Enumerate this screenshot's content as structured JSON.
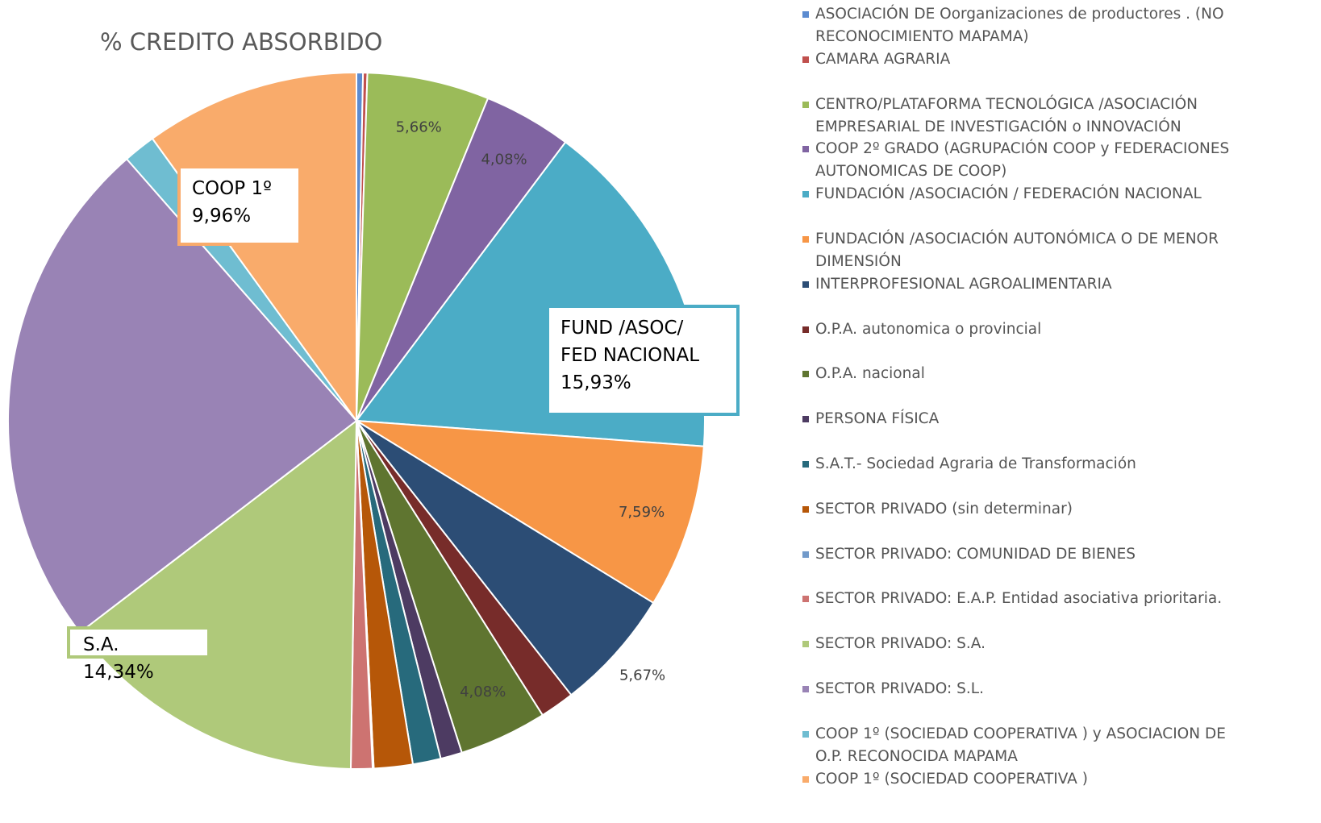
{
  "chart_data": {
    "type": "pie",
    "title": "% CREDITO ABSORBIDO",
    "categories": [
      "ASOCIACIÓN DE Oorganizaciones de productores . (NO RECONOCIMIENTO MAPAMA)",
      "CAMARA AGRARIA",
      "CENTRO/PLATAFORMA TECNOLÓGICA /ASOCIACIÓN EMPRESARIAL DE INVESTIGACIÓN  o INNOVACIÓN",
      "COOP 2º GRADO (AGRUPACIÓN COOP y FEDERACIONES AUTONOMICAS DE COOP)",
      "FUNDACIÓN /ASOCIACIÓN / FEDERACIÓN  NACIONAL",
      "FUNDACIÓN /ASOCIACIÓN AUTONÓMICA O DE MENOR DIMENSIÓN",
      "INTERPROFESIONAL AGROALIMENTARIA",
      "O.P.A. autonomica o provincial",
      "O.P.A. nacional",
      "PERSONA FÍSICA",
      "S.A.T.- Sociedad Agraria de Transformación",
      "SECTOR PRIVADO (sin determinar)",
      "SECTOR PRIVADO: COMUNIDAD DE BIENES",
      "SECTOR PRIVADO: E.A.P. Entidad asociativa prioritaria.",
      "SECTOR PRIVADO: S.A.",
      "SECTOR PRIVADO: S.L.",
      "COOP 1º (SOCIEDAD COOPERATIVA ) y ASOCIACION DE O.P. RECONOCIDA MAPAMA",
      "COOP 1º (SOCIEDAD COOPERATIVA )"
    ],
    "values": [
      0.3,
      0.2,
      5.66,
      4.08,
      15.93,
      7.59,
      5.67,
      1.6,
      4.08,
      1.0,
      1.3,
      1.8,
      0.05,
      1.0,
      14.34,
      23.94,
      1.5,
      9.96
    ],
    "value_labels": [
      null,
      null,
      "5,66%",
      "4,08%",
      "15,93%",
      "7,59%",
      "5,67%",
      null,
      "4,08%",
      null,
      null,
      null,
      null,
      null,
      "14,34%",
      null,
      null,
      "9,96%"
    ],
    "label_titles": [
      null,
      null,
      null,
      null,
      [
        "FUND /ASOC/",
        "FED NACIONAL"
      ],
      null,
      null,
      null,
      null,
      null,
      null,
      null,
      null,
      null,
      [
        "S.A."
      ],
      null,
      null,
      [
        "COOP 1º"
      ]
    ],
    "colors": [
      "#5b8bd0",
      "#c0504d",
      "#9bbb59",
      "#8064a2",
      "#4bacc6",
      "#f79646",
      "#2c4d75",
      "#772c2a",
      "#5f7530",
      "#4d3b62",
      "#276a7c",
      "#b65708",
      "#729aca",
      "#cd7371",
      "#afc97a",
      "#9983b5",
      "#6fbdd1",
      "#f9ab6b"
    ]
  }
}
